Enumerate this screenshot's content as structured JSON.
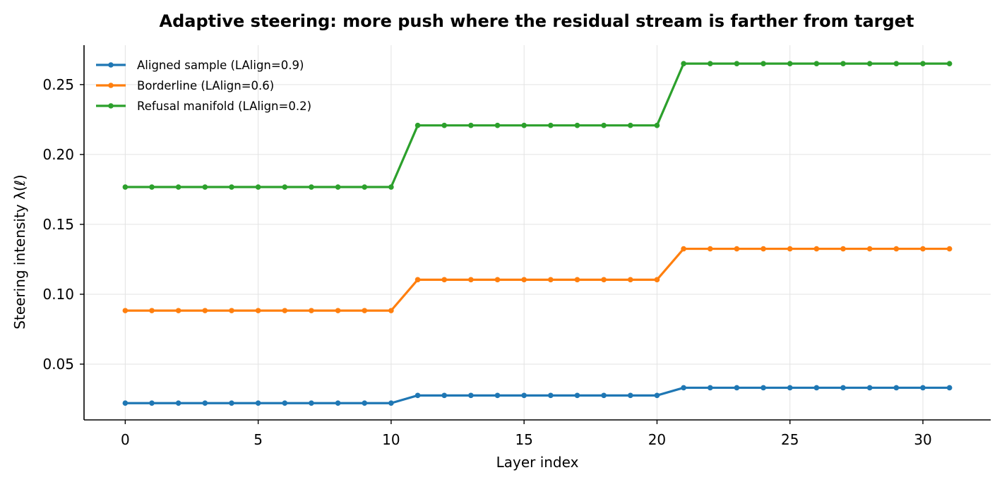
{
  "chart_data": {
    "type": "line",
    "title": "Adaptive steering: more push where the residual stream is farther from target",
    "xlabel": "Layer index",
    "ylabel": "Steering intensity  λ(ℓ)",
    "xlim": [
      -1.55,
      32.55
    ],
    "ylim": [
      0.0101,
      0.2782
    ],
    "xticks": [
      0,
      5,
      10,
      15,
      20,
      25,
      30
    ],
    "xtick_labels": [
      "0",
      "5",
      "10",
      "15",
      "20",
      "25",
      "30"
    ],
    "yticks": [
      0.05,
      0.1,
      0.15,
      0.2,
      0.25
    ],
    "ytick_labels": [
      "0.05",
      "0.10",
      "0.15",
      "0.20",
      "0.25"
    ],
    "grid": true,
    "legend_position": "top-left",
    "x": [
      0,
      1,
      2,
      3,
      4,
      5,
      6,
      7,
      8,
      9,
      10,
      11,
      12,
      13,
      14,
      15,
      16,
      17,
      18,
      19,
      20,
      21,
      22,
      23,
      24,
      25,
      26,
      27,
      28,
      29,
      30,
      31
    ],
    "series": [
      {
        "name": "Aligned sample (LAlign=0.9)",
        "color": "#1f77b4",
        "values": [
          0.0221,
          0.0221,
          0.0221,
          0.0221,
          0.0221,
          0.0221,
          0.0221,
          0.0221,
          0.0221,
          0.0221,
          0.0221,
          0.0276,
          0.0276,
          0.0276,
          0.0276,
          0.0276,
          0.0276,
          0.0276,
          0.0276,
          0.0276,
          0.0276,
          0.0331,
          0.0331,
          0.0331,
          0.0331,
          0.0331,
          0.0331,
          0.0331,
          0.0331,
          0.0331,
          0.0331,
          0.0331
        ]
      },
      {
        "name": "Borderline (LAlign=0.6)",
        "color": "#ff7f0e",
        "values": [
          0.0883,
          0.0883,
          0.0883,
          0.0883,
          0.0883,
          0.0883,
          0.0883,
          0.0883,
          0.0883,
          0.0883,
          0.0883,
          0.1104,
          0.1104,
          0.1104,
          0.1104,
          0.1104,
          0.1104,
          0.1104,
          0.1104,
          0.1104,
          0.1104,
          0.1325,
          0.1325,
          0.1325,
          0.1325,
          0.1325,
          0.1325,
          0.1325,
          0.1325,
          0.1325,
          0.1325,
          0.1325
        ]
      },
      {
        "name": "Refusal manifold (LAlign=0.2)",
        "color": "#2ca02c",
        "values": [
          0.1767,
          0.1767,
          0.1767,
          0.1767,
          0.1767,
          0.1767,
          0.1767,
          0.1767,
          0.1767,
          0.1767,
          0.1767,
          0.2208,
          0.2208,
          0.2208,
          0.2208,
          0.2208,
          0.2208,
          0.2208,
          0.2208,
          0.2208,
          0.2208,
          0.265,
          0.265,
          0.265,
          0.265,
          0.265,
          0.265,
          0.265,
          0.265,
          0.265,
          0.265,
          0.265
        ]
      }
    ]
  }
}
